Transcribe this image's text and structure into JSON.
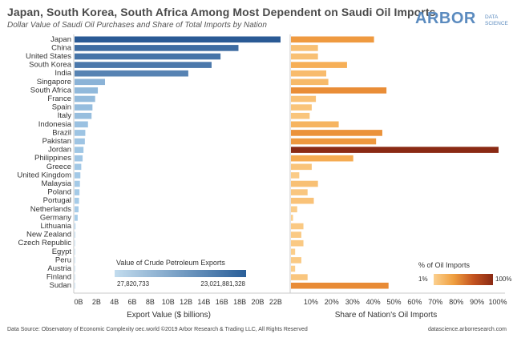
{
  "header": {
    "title": "Japan, South Korea, South Africa Among Most Dependent on Saudi Oil Imports",
    "subtitle": "Dollar Value of Saudi Oil Purchases and Share of Total Imports by Nation"
  },
  "logo": {
    "word": "ARBOR",
    "tag1": "DATA",
    "tag2": "SCIENCE"
  },
  "footer": {
    "source": "Data Source: Observatory of Economic Complexity oec.world     ©2019 Arbor Research & Trading LLC, All Rights Reserved",
    "site": "datascience.arborresearch.com"
  },
  "legends": {
    "export": {
      "title": "Value of Crude Petroleum Exports",
      "min": "27,820,733",
      "max": "23,021,881,328",
      "color_low": "#c2dcee",
      "color_high": "#2a5f99"
    },
    "share": {
      "title": "% of Oil Imports",
      "min": "1%",
      "max": "100%",
      "color_low": "#fbd08f",
      "color_high": "#8a2a14"
    }
  },
  "chart_data": [
    {
      "type": "bar",
      "orientation": "horizontal",
      "xlabel": "Export Value ($ billions)",
      "xlim": [
        0,
        23
      ],
      "tick_values": [
        0,
        2,
        4,
        6,
        8,
        10,
        12,
        14,
        16,
        18,
        20,
        22
      ],
      "tick_labels": [
        "0B",
        "2B",
        "4B",
        "6B",
        "8B",
        "10B",
        "12B",
        "14B",
        "16B",
        "18B",
        "20B",
        "22B"
      ],
      "categories": [
        "Japan",
        "China",
        "United States",
        "South Korea",
        "India",
        "Singapore",
        "South Africa",
        "France",
        "Spain",
        "Italy",
        "Indonesia",
        "Brazil",
        "Pakistan",
        "Jordan",
        "Philippines",
        "Greece",
        "United Kingdom",
        "Malaysia",
        "Poland",
        "Portugal",
        "Netherlands",
        "Germany",
        "Lithuania",
        "New Zealand",
        "Czech Republic",
        "Egypt",
        "Peru",
        "Austria",
        "Finland",
        "Sudan"
      ],
      "values": [
        23.0,
        18.3,
        16.3,
        15.3,
        12.7,
        3.4,
        2.6,
        2.3,
        2.0,
        1.9,
        1.5,
        1.2,
        1.15,
        1.0,
        0.9,
        0.75,
        0.65,
        0.6,
        0.55,
        0.5,
        0.45,
        0.35,
        0.1,
        0.07,
        0.05,
        0.04,
        0.03,
        0.03,
        0.03,
        0.03
      ]
    },
    {
      "type": "bar",
      "orientation": "horizontal",
      "xlabel": "Share of Nation's Oil Imports",
      "xlim": [
        0,
        100
      ],
      "tick_values": [
        10,
        20,
        30,
        40,
        50,
        60,
        70,
        80,
        90,
        100
      ],
      "tick_labels": [
        "10%",
        "20%",
        "30%",
        "40%",
        "50%",
        "60%",
        "70%",
        "80%",
        "90%",
        "100%"
      ],
      "categories": [
        "Japan",
        "China",
        "United States",
        "South Korea",
        "India",
        "Singapore",
        "South Africa",
        "France",
        "Spain",
        "Italy",
        "Indonesia",
        "Brazil",
        "Pakistan",
        "Jordan",
        "Philippines",
        "Greece",
        "United Kingdom",
        "Malaysia",
        "Poland",
        "Portugal",
        "Netherlands",
        "Germany",
        "Lithuania",
        "New Zealand",
        "Czech Republic",
        "Egypt",
        "Peru",
        "Austria",
        "Finland",
        "Sudan"
      ],
      "values": [
        40,
        13,
        13,
        27,
        17,
        18,
        46,
        12,
        10,
        9,
        23,
        44,
        41,
        100,
        30,
        10,
        4,
        13,
        8,
        11,
        3,
        1,
        6,
        5,
        6,
        2,
        5,
        2,
        8,
        47
      ]
    }
  ]
}
